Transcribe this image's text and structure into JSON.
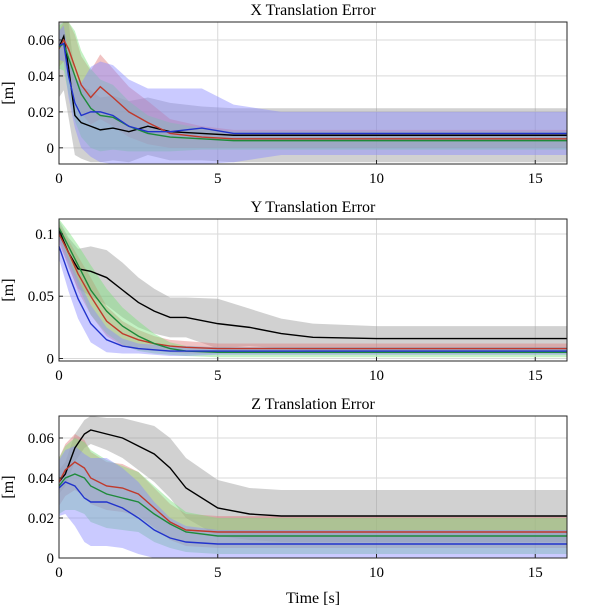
{
  "chart_data": [
    {
      "type": "line",
      "title": "X Translation Error",
      "ylabel": "[m]",
      "xlabel": "",
      "xlim": [
        0,
        16
      ],
      "ylim": [
        -0.009,
        0.07
      ],
      "xticks": [
        0,
        5,
        10,
        15
      ],
      "xtick_labels": [
        "0",
        "5",
        "10",
        "15"
      ],
      "yticks": [
        0,
        0.02,
        0.04,
        0.06
      ],
      "ytick_labels": [
        "0",
        "0.02",
        "0.04",
        "0.06"
      ],
      "grid": true,
      "legend": "none",
      "series": [
        {
          "color": "#000000",
          "x": [
            0,
            0.15,
            0.3,
            0.5,
            0.7,
            1.0,
            1.3,
            1.7,
            2.2,
            2.8,
            3.5,
            4.5,
            5.5,
            7,
            9,
            12,
            16
          ],
          "y": [
            0.056,
            0.062,
            0.045,
            0.018,
            0.014,
            0.012,
            0.01,
            0.011,
            0.009,
            0.012,
            0.009,
            0.008,
            0.007,
            0.007,
            0.007,
            0.007,
            0.007
          ],
          "band": [
            0.028,
            0.03,
            0.028,
            0.022,
            0.02,
            0.02,
            0.018,
            0.018,
            0.017,
            0.016,
            0.016,
            0.015,
            0.015,
            0.015,
            0.015,
            0.015,
            0.015
          ]
        },
        {
          "color": "#c0392b",
          "x": [
            0,
            0.15,
            0.3,
            0.5,
            0.7,
            1.0,
            1.3,
            1.7,
            2.2,
            2.8,
            3.5,
            4.5,
            5.5,
            7,
            9,
            12,
            16
          ],
          "y": [
            0.055,
            0.06,
            0.055,
            0.045,
            0.035,
            0.028,
            0.034,
            0.028,
            0.02,
            0.014,
            0.008,
            0.006,
            0.005,
            0.005,
            0.005,
            0.005,
            0.005
          ],
          "band": [
            0.01,
            0.012,
            0.015,
            0.018,
            0.016,
            0.015,
            0.018,
            0.016,
            0.014,
            0.012,
            0.008,
            0.006,
            0.005,
            0.005,
            0.005,
            0.005,
            0.005
          ]
        },
        {
          "color": "#1e8a3a",
          "x": [
            0,
            0.15,
            0.3,
            0.5,
            0.7,
            1.0,
            1.3,
            1.7,
            2.2,
            2.8,
            3.5,
            4.5,
            5.5,
            7,
            9,
            12,
            16
          ],
          "y": [
            0.056,
            0.058,
            0.05,
            0.04,
            0.03,
            0.022,
            0.018,
            0.017,
            0.012,
            0.008,
            0.006,
            0.005,
            0.004,
            0.004,
            0.004,
            0.004,
            0.004
          ],
          "band": [
            0.012,
            0.015,
            0.02,
            0.025,
            0.024,
            0.022,
            0.02,
            0.018,
            0.014,
            0.01,
            0.008,
            0.006,
            0.005,
            0.005,
            0.005,
            0.005,
            0.005
          ]
        },
        {
          "color": "#2233cc",
          "x": [
            0,
            0.15,
            0.3,
            0.5,
            0.7,
            1.0,
            1.3,
            1.7,
            2.2,
            2.8,
            3.5,
            4.5,
            5.5,
            7,
            9,
            12,
            16
          ],
          "y": [
            0.057,
            0.058,
            0.04,
            0.025,
            0.018,
            0.02,
            0.02,
            0.018,
            0.012,
            0.009,
            0.009,
            0.011,
            0.008,
            0.008,
            0.008,
            0.008,
            0.008
          ],
          "band": [
            0.008,
            0.01,
            0.012,
            0.014,
            0.018,
            0.025,
            0.028,
            0.028,
            0.026,
            0.024,
            0.024,
            0.022,
            0.016,
            0.012,
            0.012,
            0.012,
            0.012
          ]
        }
      ]
    },
    {
      "type": "line",
      "title": "Y Translation Error",
      "ylabel": "[m]",
      "xlabel": "",
      "xlim": [
        0,
        16
      ],
      "ylim": [
        -0.002,
        0.112
      ],
      "xticks": [
        0,
        5,
        10,
        15
      ],
      "xtick_labels": [
        "0",
        "5",
        "10",
        "15"
      ],
      "yticks": [
        0,
        0.05,
        0.1
      ],
      "ytick_labels": [
        "0",
        "0.05",
        "0.1"
      ],
      "grid": true,
      "legend": "none",
      "series": [
        {
          "color": "#000000",
          "x": [
            0,
            0.3,
            0.6,
            1.0,
            1.5,
            2.0,
            2.5,
            3.0,
            3.5,
            4.0,
            5.0,
            6.0,
            7.0,
            8.0,
            10,
            12,
            16
          ],
          "y": [
            0.103,
            0.085,
            0.072,
            0.07,
            0.065,
            0.055,
            0.045,
            0.038,
            0.033,
            0.033,
            0.028,
            0.025,
            0.02,
            0.017,
            0.016,
            0.016,
            0.016
          ],
          "band": [
            0.008,
            0.012,
            0.016,
            0.02,
            0.022,
            0.022,
            0.02,
            0.018,
            0.016,
            0.016,
            0.02,
            0.015,
            0.012,
            0.011,
            0.01,
            0.01,
            0.01
          ]
        },
        {
          "color": "#c0392b",
          "x": [
            0,
            0.3,
            0.6,
            1.0,
            1.5,
            2.0,
            2.5,
            3.0,
            3.5,
            4.0,
            5.0,
            6.0,
            7.0,
            8.0,
            10,
            12,
            16
          ],
          "y": [
            0.1,
            0.085,
            0.068,
            0.05,
            0.03,
            0.02,
            0.015,
            0.012,
            0.01,
            0.009,
            0.008,
            0.008,
            0.008,
            0.008,
            0.008,
            0.008,
            0.008
          ],
          "band": [
            0.008,
            0.01,
            0.014,
            0.015,
            0.012,
            0.01,
            0.008,
            0.006,
            0.005,
            0.005,
            0.004,
            0.004,
            0.004,
            0.004,
            0.004,
            0.004,
            0.004
          ]
        },
        {
          "color": "#1e8a3a",
          "x": [
            0,
            0.3,
            0.6,
            1.0,
            1.5,
            2.0,
            2.5,
            3.0,
            3.5,
            4.0,
            5.0,
            6.0,
            7.0,
            8.0,
            10,
            12,
            16
          ],
          "y": [
            0.105,
            0.09,
            0.075,
            0.055,
            0.038,
            0.026,
            0.018,
            0.012,
            0.008,
            0.006,
            0.005,
            0.005,
            0.005,
            0.005,
            0.005,
            0.005,
            0.005
          ],
          "band": [
            0.008,
            0.012,
            0.016,
            0.02,
            0.018,
            0.015,
            0.012,
            0.008,
            0.005,
            0.004,
            0.004,
            0.004,
            0.004,
            0.004,
            0.004,
            0.004,
            0.004
          ]
        },
        {
          "color": "#2233cc",
          "x": [
            0,
            0.3,
            0.6,
            1.0,
            1.5,
            2.0,
            2.5,
            3.0,
            3.5,
            4.0,
            5.0,
            6.0,
            7.0,
            8.0,
            10,
            12,
            16
          ],
          "y": [
            0.09,
            0.068,
            0.048,
            0.028,
            0.015,
            0.01,
            0.008,
            0.007,
            0.006,
            0.006,
            0.006,
            0.006,
            0.006,
            0.006,
            0.006,
            0.006,
            0.006
          ],
          "band": [
            0.01,
            0.014,
            0.016,
            0.015,
            0.01,
            0.006,
            0.004,
            0.004,
            0.004,
            0.004,
            0.003,
            0.003,
            0.003,
            0.003,
            0.003,
            0.003,
            0.003
          ]
        }
      ]
    },
    {
      "type": "line",
      "title": "Z Translation Error",
      "ylabel": "[m]",
      "xlabel": "Time [s]",
      "xlim": [
        0,
        16
      ],
      "ylim": [
        0,
        0.071
      ],
      "xticks": [
        0,
        5,
        10,
        15
      ],
      "xtick_labels": [
        "0",
        "5",
        "10",
        "15"
      ],
      "yticks": [
        0,
        0.02,
        0.04,
        0.06
      ],
      "ytick_labels": [
        "0",
        "0.02",
        "0.04",
        "0.06"
      ],
      "grid": true,
      "legend": "none",
      "series": [
        {
          "color": "#000000",
          "x": [
            0,
            0.2,
            0.5,
            0.8,
            1.0,
            1.5,
            2.0,
            2.5,
            3.0,
            3.5,
            4.0,
            5.0,
            6.0,
            7.0,
            9,
            12,
            16
          ],
          "y": [
            0.038,
            0.042,
            0.055,
            0.062,
            0.064,
            0.062,
            0.06,
            0.056,
            0.052,
            0.045,
            0.035,
            0.025,
            0.022,
            0.021,
            0.021,
            0.021,
            0.021
          ],
          "band": [
            0.006,
            0.006,
            0.007,
            0.007,
            0.007,
            0.008,
            0.01,
            0.012,
            0.014,
            0.015,
            0.015,
            0.014,
            0.013,
            0.013,
            0.013,
            0.013,
            0.013
          ]
        },
        {
          "color": "#c0392b",
          "x": [
            0,
            0.2,
            0.5,
            0.8,
            1.0,
            1.5,
            2.0,
            2.5,
            3.0,
            3.5,
            4.0,
            5.0,
            6.0,
            7.0,
            9,
            12,
            16
          ],
          "y": [
            0.038,
            0.044,
            0.048,
            0.045,
            0.04,
            0.036,
            0.035,
            0.032,
            0.025,
            0.018,
            0.014,
            0.013,
            0.013,
            0.013,
            0.013,
            0.013,
            0.013
          ],
          "band": [
            0.012,
            0.013,
            0.014,
            0.014,
            0.013,
            0.012,
            0.012,
            0.011,
            0.01,
            0.009,
            0.008,
            0.008,
            0.008,
            0.008,
            0.008,
            0.008,
            0.008
          ]
        },
        {
          "color": "#1e8a3a",
          "x": [
            0,
            0.2,
            0.5,
            0.8,
            1.0,
            1.5,
            2.0,
            2.5,
            3.0,
            3.5,
            4.0,
            5.0,
            6.0,
            7.0,
            9,
            12,
            16
          ],
          "y": [
            0.036,
            0.04,
            0.042,
            0.04,
            0.036,
            0.032,
            0.03,
            0.028,
            0.022,
            0.017,
            0.013,
            0.011,
            0.011,
            0.011,
            0.011,
            0.011,
            0.011
          ],
          "band": [
            0.014,
            0.016,
            0.018,
            0.018,
            0.018,
            0.017,
            0.016,
            0.015,
            0.014,
            0.012,
            0.01,
            0.009,
            0.009,
            0.009,
            0.009,
            0.009,
            0.009
          ]
        },
        {
          "color": "#2233cc",
          "x": [
            0,
            0.2,
            0.5,
            0.8,
            1.0,
            1.5,
            2.0,
            2.5,
            3.0,
            3.5,
            4.0,
            5.0,
            6.0,
            7.0,
            9,
            12,
            16
          ],
          "y": [
            0.035,
            0.038,
            0.036,
            0.03,
            0.028,
            0.028,
            0.025,
            0.02,
            0.014,
            0.01,
            0.008,
            0.007,
            0.007,
            0.007,
            0.007,
            0.007,
            0.007
          ],
          "band": [
            0.014,
            0.016,
            0.02,
            0.022,
            0.022,
            0.022,
            0.02,
            0.018,
            0.014,
            0.01,
            0.008,
            0.007,
            0.007,
            0.007,
            0.007,
            0.007,
            0.007
          ]
        }
      ]
    }
  ]
}
